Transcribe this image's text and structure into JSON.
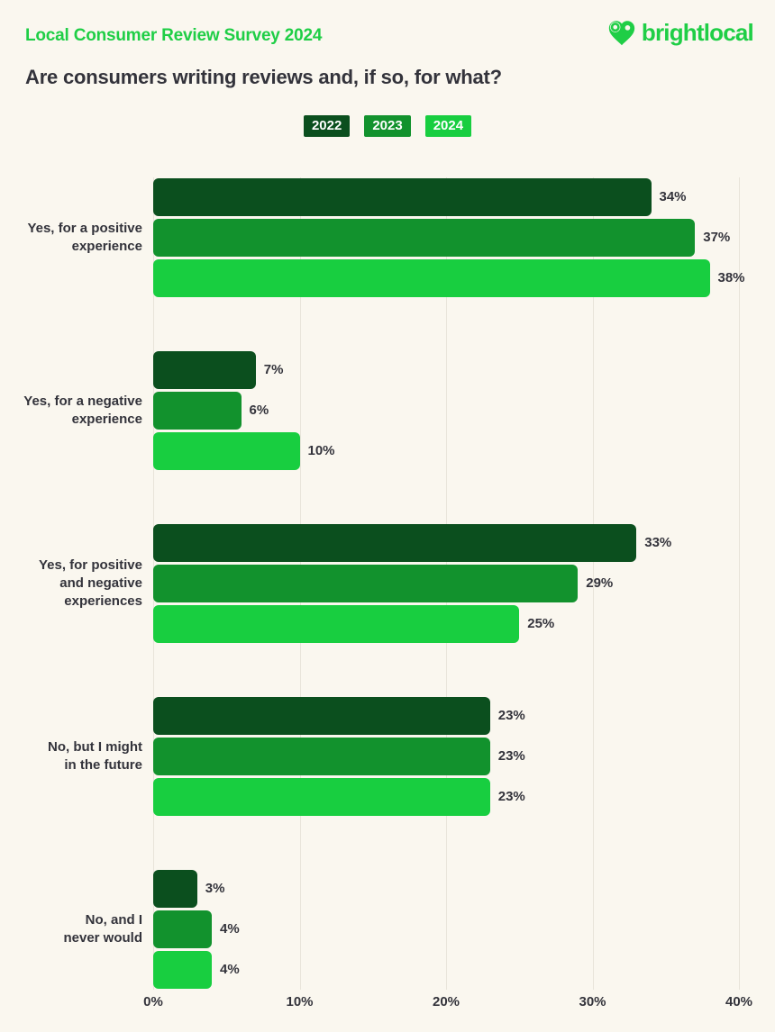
{
  "theme": {
    "background": "#FAF7EF",
    "text_dark": "#33333B",
    "grid": "#E8E4DA",
    "brand_green": "#1FCE46"
  },
  "header": {
    "survey_title": "Local Consumer Review Survey 2024",
    "logo_text": "brightlocal"
  },
  "title": "Are consumers writing reviews and, if so, for what?",
  "chart_data": {
    "type": "bar",
    "orientation": "horizontal",
    "title": "Are consumers writing reviews and, if so, for what?",
    "categories": [
      "Yes, for a positive\nexperience",
      "Yes, for a negative\nexperience",
      "Yes, for positive\nand negative\nexperiences",
      "No, but I might\nin the future",
      "No, and I\nnever would"
    ],
    "series": [
      {
        "name": "2022",
        "color": "#0B4F1E",
        "values": [
          34,
          7,
          33,
          23,
          3
        ]
      },
      {
        "name": "2023",
        "color": "#12922D",
        "values": [
          37,
          6,
          29,
          23,
          4
        ]
      },
      {
        "name": "2024",
        "color": "#18CE40",
        "values": [
          38,
          10,
          25,
          23,
          4
        ]
      }
    ],
    "value_suffix": "%",
    "xlim": [
      0,
      40
    ],
    "x_ticks": [
      "0%",
      "10%",
      "20%",
      "30%",
      "40%"
    ],
    "grid": true,
    "legend_position": "top-center"
  }
}
